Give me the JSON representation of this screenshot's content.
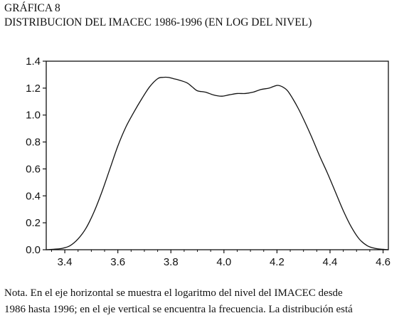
{
  "header": {
    "label": "GRÁFICA 8",
    "title": "DISTRIBUCION DEL IMACEC 1986-1996 (EN LOG DEL NIVEL)"
  },
  "note": {
    "lines": [
      "Nota.  En el eje horizontal se muestra el logaritmo del nivel del IMACEC desde",
      "1986 hasta 1996; en el eje vertical se encuentra la frecuencia. La distribución está"
    ]
  },
  "chart_data": {
    "type": "line",
    "title": "DISTRIBUCION DEL IMACEC 1986-1996 (EN LOG DEL NIVEL)",
    "xlabel": "",
    "ylabel": "",
    "xlim": [
      3.33,
      4.62
    ],
    "ylim": [
      0,
      1.4
    ],
    "xticks": [
      "3.4",
      "3.6",
      "3.8",
      "4.0",
      "4.2",
      "4.4",
      "4.6"
    ],
    "xtick_values": [
      3.4,
      3.6,
      3.8,
      4.0,
      4.2,
      4.4,
      4.6
    ],
    "yticks": [
      "0.0",
      "0.2",
      "0.4",
      "0.6",
      "0.8",
      "1.0",
      "1.2",
      "1.4"
    ],
    "ytick_values": [
      0.0,
      0.2,
      0.4,
      0.6,
      0.8,
      1.0,
      1.2,
      1.4
    ],
    "grid": false,
    "series": [
      {
        "color": "#111111",
        "x": [
          3.33,
          3.36,
          3.39,
          3.42,
          3.45,
          3.48,
          3.51,
          3.54,
          3.57,
          3.6,
          3.63,
          3.66,
          3.69,
          3.72,
          3.75,
          3.77,
          3.79,
          3.81,
          3.83,
          3.86,
          3.88,
          3.9,
          3.93,
          3.96,
          3.99,
          4.02,
          4.05,
          4.08,
          4.11,
          4.14,
          4.17,
          4.2,
          4.22,
          4.24,
          4.26,
          4.28,
          4.3,
          4.33,
          4.36,
          4.39,
          4.42,
          4.45,
          4.48,
          4.51,
          4.54,
          4.57,
          4.6,
          4.62
        ],
        "y": [
          0.0,
          0.004,
          0.01,
          0.03,
          0.08,
          0.16,
          0.28,
          0.43,
          0.6,
          0.77,
          0.91,
          1.02,
          1.12,
          1.21,
          1.27,
          1.28,
          1.28,
          1.27,
          1.26,
          1.24,
          1.21,
          1.18,
          1.17,
          1.15,
          1.14,
          1.15,
          1.16,
          1.16,
          1.17,
          1.19,
          1.2,
          1.22,
          1.21,
          1.18,
          1.12,
          1.05,
          0.97,
          0.84,
          0.7,
          0.57,
          0.43,
          0.29,
          0.17,
          0.08,
          0.03,
          0.01,
          0.003,
          0.0
        ]
      }
    ]
  }
}
